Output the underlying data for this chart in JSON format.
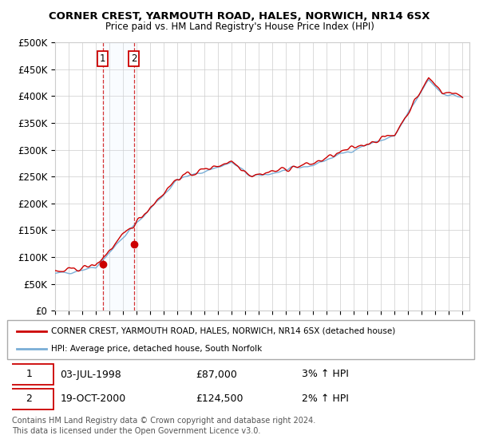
{
  "title": "CORNER CREST, YARMOUTH ROAD, HALES, NORWICH, NR14 6SX",
  "subtitle": "Price paid vs. HM Land Registry's House Price Index (HPI)",
  "ylabel_ticks": [
    "£0",
    "£50K",
    "£100K",
    "£150K",
    "£200K",
    "£250K",
    "£300K",
    "£350K",
    "£400K",
    "£450K",
    "£500K"
  ],
  "ytick_values": [
    0,
    50000,
    100000,
    150000,
    200000,
    250000,
    300000,
    350000,
    400000,
    450000,
    500000
  ],
  "ylim": [
    0,
    500000
  ],
  "hpi_color": "#7aaed6",
  "price_color": "#cc0000",
  "sale1_t": 1998.5,
  "sale1_v": 87000,
  "sale2_t": 2000.8,
  "sale2_v": 124500,
  "legend_line1": "CORNER CREST, YARMOUTH ROAD, HALES, NORWICH, NR14 6SX (detached house)",
  "legend_line2": "HPI: Average price, detached house, South Norfolk",
  "sale1_date": "03-JUL-1998",
  "sale1_price": "£87,000",
  "sale1_hpi": "3% ↑ HPI",
  "sale2_date": "19-OCT-2000",
  "sale2_price": "£124,500",
  "sale2_hpi": "2% ↑ HPI",
  "footnote1": "Contains HM Land Registry data © Crown copyright and database right 2024.",
  "footnote2": "This data is licensed under the Open Government Licence v3.0.",
  "background_color": "#ffffff",
  "plot_bg_color": "#ffffff",
  "grid_color": "#cccccc",
  "span_color": "#ddeeff"
}
